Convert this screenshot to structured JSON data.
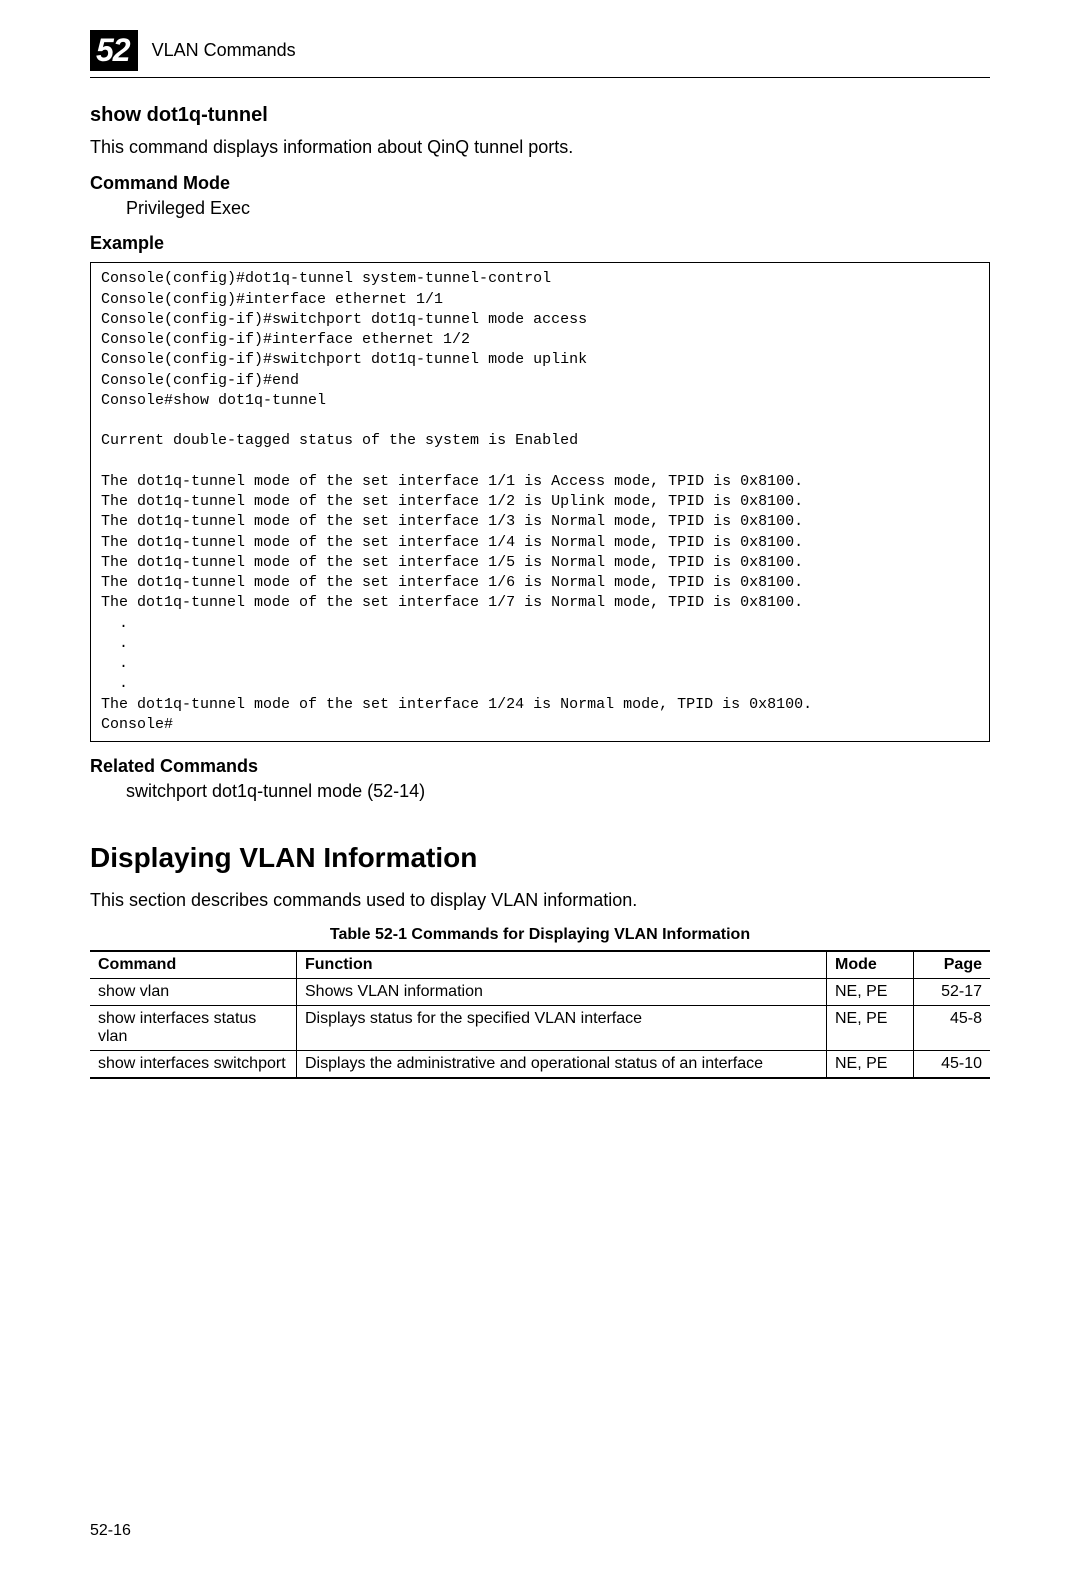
{
  "header": {
    "chapter_number": "52",
    "chapter_title": "VLAN Commands"
  },
  "cmd1": {
    "name": "show dot1q-tunnel",
    "description": "This command displays information about QinQ tunnel ports.",
    "mode_label": "Command Mode",
    "mode_value": "Privileged Exec",
    "example_label": "Example",
    "example_text": "Console(config)#dot1q-tunnel system-tunnel-control\nConsole(config)#interface ethernet 1/1\nConsole(config-if)#switchport dot1q-tunnel mode access\nConsole(config-if)#interface ethernet 1/2\nConsole(config-if)#switchport dot1q-tunnel mode uplink\nConsole(config-if)#end\nConsole#show dot1q-tunnel\n\nCurrent double-tagged status of the system is Enabled\n\nThe dot1q-tunnel mode of the set interface 1/1 is Access mode, TPID is 0x8100.\nThe dot1q-tunnel mode of the set interface 1/2 is Uplink mode, TPID is 0x8100.\nThe dot1q-tunnel mode of the set interface 1/3 is Normal mode, TPID is 0x8100.\nThe dot1q-tunnel mode of the set interface 1/4 is Normal mode, TPID is 0x8100.\nThe dot1q-tunnel mode of the set interface 1/5 is Normal mode, TPID is 0x8100.\nThe dot1q-tunnel mode of the set interface 1/6 is Normal mode, TPID is 0x8100.\nThe dot1q-tunnel mode of the set interface 1/7 is Normal mode, TPID is 0x8100.\n  .\n  .\n  .\n  .\nThe dot1q-tunnel mode of the set interface 1/24 is Normal mode, TPID is 0x8100.\nConsole#",
    "related_label": "Related Commands",
    "related_text": "switchport dot1q-tunnel mode (52-14)"
  },
  "section": {
    "title": "Displaying VLAN Information",
    "intro": "This section describes commands used to display VLAN information."
  },
  "table": {
    "caption": "Table 52-1   Commands for Displaying VLAN Information",
    "headers": {
      "command": "Command",
      "function": "Function",
      "mode": "Mode",
      "page": "Page"
    },
    "rows": [
      {
        "command": "show vlan",
        "function": "Shows VLAN information",
        "mode": "NE, PE",
        "page": "52-17"
      },
      {
        "command": "show interfaces status vlan",
        "function": "Displays status for the specified VLAN interface",
        "mode": "NE, PE",
        "page": "45-8"
      },
      {
        "command": "show interfaces switchport",
        "function": "Displays the administrative and operational status of an interface",
        "mode": "NE, PE",
        "page": "45-10"
      }
    ]
  },
  "footer": {
    "page_number": "52-16"
  }
}
